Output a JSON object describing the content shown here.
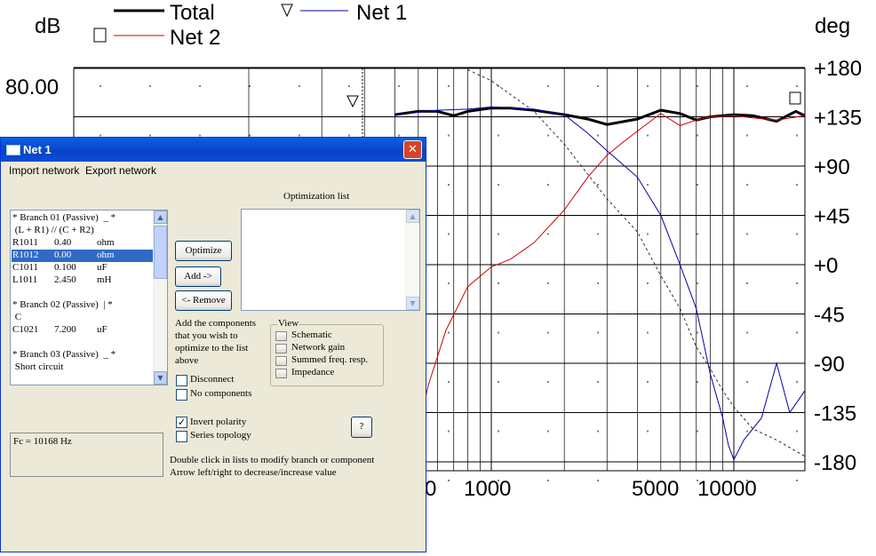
{
  "plot": {
    "left_axis_title": "dB",
    "right_axis_title": "deg",
    "left_tick": "80.00",
    "right_ticks": [
      "+180",
      "+135",
      "+90",
      "+45",
      "+0",
      "-45",
      "-90",
      "-135",
      "-180"
    ],
    "x_ticks": [
      "0",
      "1000",
      "5000",
      "10000"
    ],
    "legend": [
      {
        "name": "Total",
        "color": "#000000",
        "marker": ""
      },
      {
        "name": "Net 2",
        "color": "#cc0000",
        "marker": "□"
      },
      {
        "name": "Net 1",
        "color": "#0000aa",
        "marker": "▽"
      }
    ]
  },
  "chart_data": {
    "type": "line",
    "xscale": "log",
    "xlim": [
      400,
      20000
    ],
    "y2label": "deg",
    "y2lim": [
      -180,
      180
    ],
    "series": [
      {
        "name": "Total",
        "x": [
          400,
          500,
          600,
          700,
          800,
          1000,
          1200,
          1500,
          2000,
          2500,
          3000,
          4000,
          5000,
          6000,
          7000,
          8000,
          10000,
          12000,
          15000,
          18000,
          20000
        ],
        "y_deg": [
          137,
          140,
          140,
          136,
          140,
          143,
          143,
          141,
          137,
          133,
          128,
          133,
          141,
          138,
          132,
          135,
          137,
          136,
          131,
          140,
          136
        ]
      },
      {
        "name": "Net 2",
        "x": [
          430,
          480,
          550,
          650,
          800,
          1000,
          1200,
          1500,
          2000,
          2500,
          3000,
          3500,
          4000,
          5000,
          6000,
          7000,
          8000,
          10000,
          12000,
          15000,
          20000
        ],
        "y_deg": [
          -180,
          -168,
          -110,
          -60,
          -20,
          -2,
          5,
          20,
          50,
          80,
          100,
          112,
          122,
          138,
          127,
          132,
          135,
          136,
          134,
          132,
          136
        ]
      },
      {
        "name": "Net 1",
        "x": [
          400,
          600,
          800,
          1000,
          1500,
          2000,
          2500,
          3000,
          4000,
          5000,
          6000,
          7000,
          8000,
          9000,
          9500,
          10000,
          11000,
          13000,
          15000,
          17000,
          20000
        ],
        "y_deg": [
          137,
          141,
          142,
          144,
          142,
          137,
          120,
          104,
          80,
          45,
          0,
          -40,
          -100,
          -140,
          -165,
          -178,
          -160,
          -140,
          -90,
          -135,
          -115
        ]
      },
      {
        "name": "dashed",
        "x": [
          800,
          1000,
          1500,
          2000,
          3000,
          4000,
          5000,
          6000,
          7000,
          8000,
          9000,
          10000,
          12000,
          15000,
          20000
        ],
        "y_deg": [
          178,
          168,
          140,
          110,
          60,
          30,
          -10,
          -40,
          -75,
          -95,
          -115,
          -130,
          -150,
          -160,
          -175
        ]
      }
    ]
  },
  "dialog": {
    "title": "Net 1",
    "menu": [
      "Import network",
      "Export network"
    ],
    "optimization_list_label": "Optimization list",
    "branch_rows": [
      {
        "text": "* Branch 01 (Passive)  _ *",
        "c1": "",
        "c2": "",
        "c3": ""
      },
      {
        "text": " (L + R1) // (C + R2)",
        "c1": "",
        "c2": "",
        "c3": ""
      },
      {
        "text": "",
        "c1": "R1011",
        "c2": "0.40",
        "c3": "ohm"
      },
      {
        "text": "",
        "c1": "R1012",
        "c2": "0.00",
        "c3": "ohm"
      },
      {
        "text": "",
        "c1": "C1011",
        "c2": "0.100",
        "c3": "uF"
      },
      {
        "text": "",
        "c1": "L1011",
        "c2": "2.450",
        "c3": "mH"
      },
      {
        "text": "",
        "c1": "",
        "c2": "",
        "c3": ""
      },
      {
        "text": "* Branch 02 (Passive)  | *",
        "c1": "",
        "c2": "",
        "c3": ""
      },
      {
        "text": " C",
        "c1": "",
        "c2": "",
        "c3": ""
      },
      {
        "text": "",
        "c1": "C1021",
        "c2": "7.200",
        "c3": "uF"
      },
      {
        "text": "",
        "c1": "",
        "c2": "",
        "c3": ""
      },
      {
        "text": "* Branch 03 (Passive)  _ *",
        "c1": "",
        "c2": "",
        "c3": ""
      },
      {
        "text": " Short circuit",
        "c1": "",
        "c2": "",
        "c3": ""
      }
    ],
    "selected_row": 3,
    "buttons": {
      "optimize": "Optimize",
      "add": "Add ->",
      "remove": "<- Remove",
      "help": "?"
    },
    "hint_text": [
      "Add the components",
      "that you wish to",
      "optimize to the list",
      "above"
    ],
    "view_group": {
      "title": "View",
      "items": [
        "Schematic",
        "Network gain",
        "Summed freq. resp.",
        "Impedance"
      ]
    },
    "checkboxes": [
      {
        "label": "Disconnect",
        "checked": false
      },
      {
        "label": "No components",
        "checked": false
      },
      {
        "label": "Invert polarity",
        "checked": true
      },
      {
        "label": "Series topology",
        "checked": false
      }
    ],
    "fc_text": "Fc = 10168 Hz",
    "footer": [
      "Double click in lists to modify branch or component",
      "Arrow left/right to decrease/increase value"
    ]
  }
}
